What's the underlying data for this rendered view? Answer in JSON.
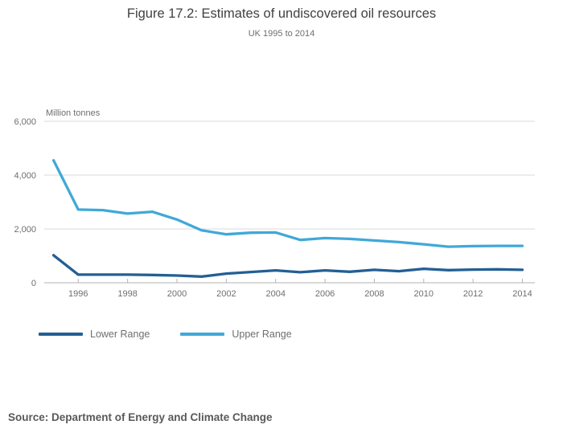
{
  "title": "Figure 17.2: Estimates of undiscovered oil resources",
  "subtitle": "UK 1995 to 2014",
  "unit_label": "Million tonnes",
  "source": "Source: Department of Energy and Climate Change",
  "colors": {
    "lower": "#235f94",
    "upper": "#41a8d8",
    "grid": "#d9d9d9",
    "axis": "#b3b3b3",
    "tick_text": "#6d6e71"
  },
  "legend": [
    {
      "label": "Lower Range",
      "color_key": "lower"
    },
    {
      "label": "Upper Range",
      "color_key": "upper"
    }
  ],
  "chart_data": {
    "type": "line",
    "title": "Figure 17.2: Estimates of undiscovered oil resources",
    "subtitle": "UK 1995 to 2014",
    "ylabel": "Million tonnes",
    "xlabel": "",
    "ylim": [
      0,
      6000
    ],
    "yticks": [
      0,
      2000,
      4000,
      6000
    ],
    "ytick_labels": [
      "0",
      "2,000",
      "4,000",
      "6,000"
    ],
    "xticks": [
      1996,
      1998,
      2000,
      2002,
      2004,
      2006,
      2008,
      2010,
      2012,
      2014
    ],
    "grid": "horizontal",
    "legend_position": "bottom-left",
    "x": [
      1995,
      1996,
      1997,
      1998,
      1999,
      2000,
      2001,
      2002,
      2003,
      2004,
      2005,
      2006,
      2007,
      2008,
      2009,
      2010,
      2011,
      2012,
      2013,
      2014
    ],
    "series": [
      {
        "name": "Lower Range",
        "color_key": "lower",
        "values": [
          1020,
          300,
          300,
          300,
          290,
          270,
          230,
          340,
          400,
          460,
          390,
          460,
          410,
          480,
          430,
          520,
          470,
          490,
          500,
          480
        ]
      },
      {
        "name": "Upper Range",
        "color_key": "upper",
        "values": [
          4550,
          2720,
          2700,
          2570,
          2640,
          2350,
          1950,
          1800,
          1860,
          1870,
          1590,
          1660,
          1630,
          1570,
          1510,
          1430,
          1340,
          1360,
          1370,
          1370
        ]
      }
    ]
  }
}
